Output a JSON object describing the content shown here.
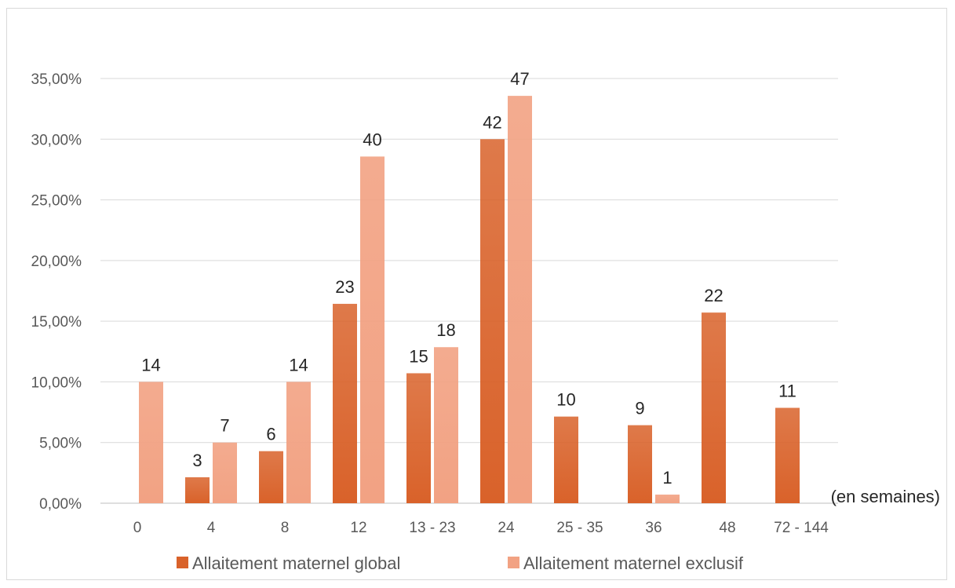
{
  "chart_data": {
    "type": "bar",
    "categories": [
      "0",
      "4",
      "8",
      "12",
      "13 - 23",
      "24",
      "25 - 35",
      "36",
      "48",
      "72 - 144"
    ],
    "series": [
      {
        "name": "Allaitement maternel global",
        "color": "#d9622a",
        "values": [
          0.0,
          2.14,
          4.29,
          16.43,
          10.71,
          30.0,
          7.14,
          6.43,
          15.71,
          7.86
        ],
        "labels": [
          "",
          "3",
          "6",
          "23",
          "15",
          "42",
          "10",
          "9",
          "22",
          "11"
        ]
      },
      {
        "name": "Allaitement maternel exclusif",
        "color": "#f2a283",
        "values": [
          10.0,
          5.0,
          10.0,
          28.57,
          12.86,
          33.57,
          0.0,
          0.71,
          0.0,
          0.0
        ],
        "labels": [
          "14",
          "7",
          "14",
          "40",
          "18",
          "47",
          "",
          "1",
          "",
          ""
        ]
      }
    ],
    "yticks": [
      "0,00%",
      "5,00%",
      "10,00%",
      "15,00%",
      "20,00%",
      "25,00%",
      "30,00%",
      "35,00%"
    ],
    "ylim": [
      0,
      35
    ],
    "xlabel_unit": "(en semaines)",
    "grid": true,
    "legend": "bottom"
  }
}
